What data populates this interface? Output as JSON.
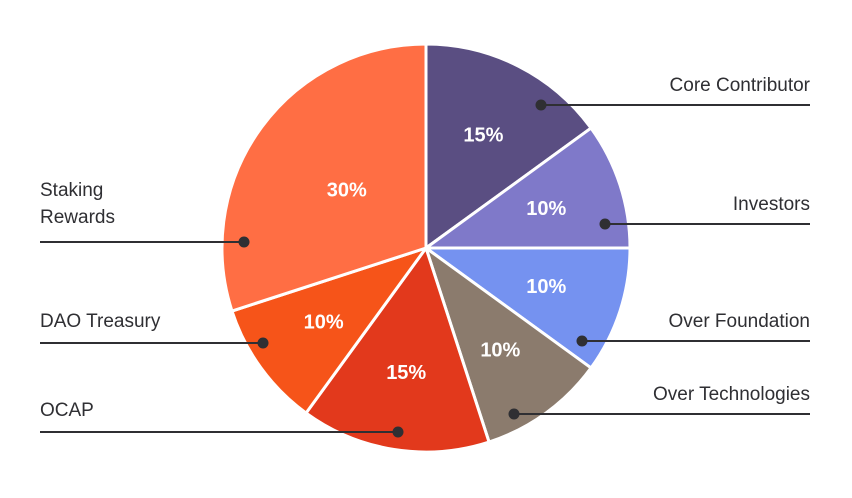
{
  "chart_data": {
    "type": "pie",
    "title": "",
    "slices": [
      {
        "label": "Core Contributor",
        "value": 15,
        "display": "15%",
        "color": "#5A4E82"
      },
      {
        "label": "Investors",
        "value": 10,
        "display": "10%",
        "color": "#7F79C9"
      },
      {
        "label": "Over Foundation",
        "value": 10,
        "display": "10%",
        "color": "#7592F0"
      },
      {
        "label": "Over Technologies",
        "value": 10,
        "display": "10%",
        "color": "#8B7B6D"
      },
      {
        "label": "OCAP",
        "value": 15,
        "display": "15%",
        "color": "#E2391C"
      },
      {
        "label": "DAO Treasury",
        "value": 10,
        "display": "10%",
        "color": "#F65419"
      },
      {
        "label": "Staking Rewards",
        "value": 30,
        "display": "30%",
        "color": "#FF6E44"
      }
    ],
    "legend_placement": "around-pie"
  },
  "colors": {
    "text": "#2f2f33",
    "slice_border": "#ffffff",
    "background": "#ffffff"
  }
}
